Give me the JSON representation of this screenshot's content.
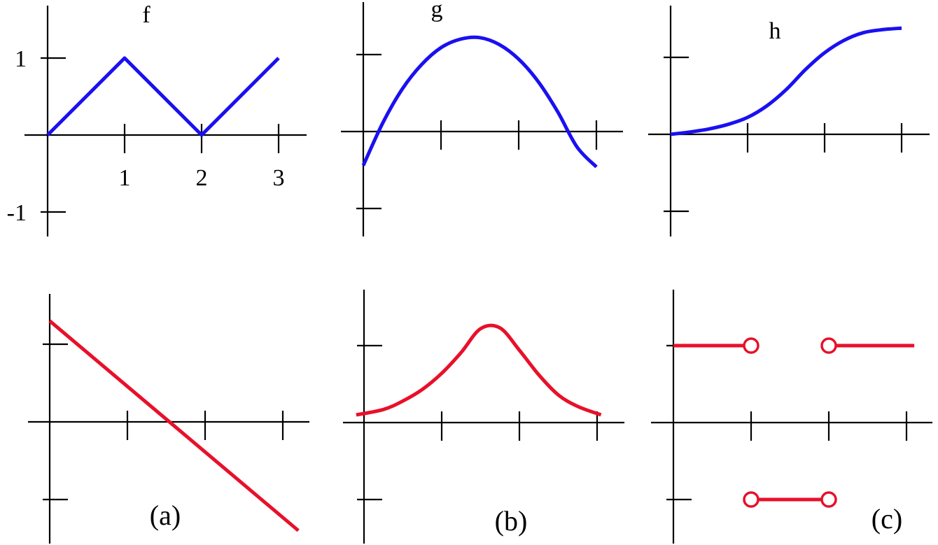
{
  "colors": {
    "top": "#1a10f0",
    "bottom": "#e8102a",
    "axis": "#000000"
  },
  "chart_data": [
    {
      "type": "line",
      "panel": "top-left",
      "title": "f",
      "x_ticks": [
        1,
        2,
        3
      ],
      "x_tick_labels": [
        "1",
        "2",
        "3"
      ],
      "y_ticks": [
        1,
        -1
      ],
      "y_tick_labels": [
        "1",
        "-1"
      ],
      "xlim": [
        0,
        3.3
      ],
      "ylim": [
        -1.3,
        1.6
      ],
      "series": [
        {
          "x": [
            0,
            1,
            2,
            3
          ],
          "y": [
            0,
            1,
            0,
            1
          ]
        }
      ]
    },
    {
      "type": "line",
      "panel": "top-middle",
      "title": "g",
      "x_ticks": [
        1,
        2,
        3
      ],
      "y_ticks": [
        1,
        -1
      ],
      "xlim": [
        0,
        3.3
      ],
      "ylim": [
        -1.3,
        1.6
      ],
      "series": [
        {
          "x": [
            0,
            0.25,
            0.5,
            0.75,
            1,
            1.25,
            1.5,
            1.75,
            2,
            2.25,
            2.5,
            2.75,
            3
          ],
          "y": [
            -0.44,
            0.11,
            0.55,
            0.87,
            1.09,
            1.2,
            1.22,
            1.13,
            0.94,
            0.65,
            0.26,
            -0.2,
            -0.46
          ]
        }
      ]
    },
    {
      "type": "line",
      "panel": "top-right",
      "title": "h",
      "x_ticks": [
        1,
        2,
        3
      ],
      "y_ticks": [
        1,
        -1
      ],
      "xlim": [
        0,
        3.3
      ],
      "ylim": [
        -1.3,
        1.6
      ],
      "series": [
        {
          "x": [
            0,
            0.25,
            0.5,
            0.75,
            1,
            1.25,
            1.5,
            1.75,
            2,
            2.25,
            2.5,
            2.75,
            3
          ],
          "y": [
            0,
            0.03,
            0.07,
            0.13,
            0.22,
            0.37,
            0.58,
            0.84,
            1.06,
            1.22,
            1.32,
            1.36,
            1.38
          ]
        }
      ]
    },
    {
      "type": "line",
      "panel": "bottom-left",
      "label": "(a)",
      "x_ticks": [
        1,
        2,
        3
      ],
      "y_ticks": [
        1,
        -1
      ],
      "xlim": [
        0,
        3.3
      ],
      "ylim": [
        -1.5,
        1.6
      ],
      "series": [
        {
          "x": [
            0,
            3.2
          ],
          "y": [
            1.3,
            -1.4
          ]
        }
      ]
    },
    {
      "type": "line",
      "panel": "bottom-middle",
      "label": "(b)",
      "x_ticks": [
        1,
        2,
        3
      ],
      "y_ticks": [
        1,
        -1
      ],
      "xlim": [
        0,
        3.3
      ],
      "ylim": [
        -1.5,
        1.6
      ],
      "series": [
        {
          "x": [
            -0.1,
            0.25,
            0.5,
            0.75,
            1,
            1.25,
            1.5,
            1.75,
            2,
            2.25,
            2.5,
            2.75,
            3.05
          ],
          "y": [
            0.1,
            0.17,
            0.28,
            0.43,
            0.64,
            0.91,
            1.22,
            1.23,
            0.94,
            0.62,
            0.36,
            0.21,
            0.1
          ]
        }
      ]
    },
    {
      "type": "line",
      "panel": "bottom-right",
      "label": "(c)",
      "x_ticks": [
        1,
        2,
        3
      ],
      "y_ticks": [
        1,
        -1
      ],
      "xlim": [
        0,
        3.3
      ],
      "ylim": [
        -1.5,
        1.6
      ],
      "series": [
        {
          "x": [
            0,
            1
          ],
          "y": [
            1,
            1
          ],
          "open_end": [
            false,
            true
          ]
        },
        {
          "x": [
            1,
            2
          ],
          "y": [
            -1,
            -1
          ],
          "open_end": [
            true,
            true
          ]
        },
        {
          "x": [
            2,
            3.1
          ],
          "y": [
            1,
            1
          ],
          "open_end": [
            true,
            false
          ]
        }
      ]
    }
  ]
}
